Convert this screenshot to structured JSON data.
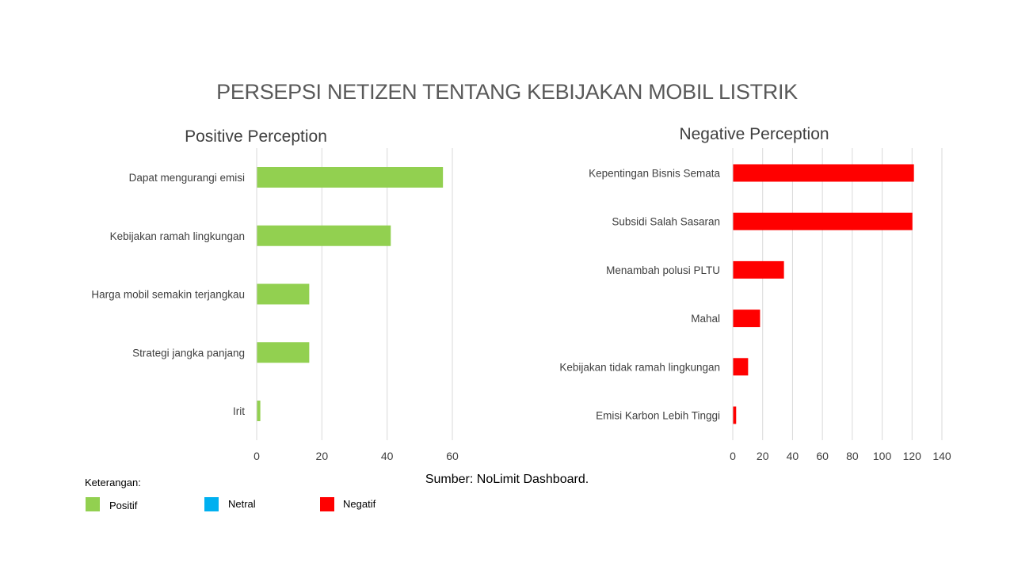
{
  "title": "PERSEPSI NETIZEN TENTANG KEBIJAKAN MOBIL LISTRIK",
  "source": "Sumber: NoLimit Dashboard.",
  "legend": {
    "title": "Keterangan:",
    "items": [
      {
        "label": "Positif",
        "color": "#92d050"
      },
      {
        "label": "Netral",
        "color": "#00b0f0"
      },
      {
        "label": "Negatif",
        "color": "#ff0000"
      }
    ]
  },
  "chart_data": [
    {
      "type": "bar",
      "orientation": "horizontal",
      "title": "Positive Perception",
      "categories": [
        "Dapat mengurangi emisi",
        "Kebijakan ramah lingkungan",
        "Harga mobil semakin terjangkau",
        "Strategi jangka panjang",
        "Irit"
      ],
      "values": [
        57,
        41,
        16,
        16,
        1
      ],
      "xlim": [
        0,
        60
      ],
      "xticks": [
        0,
        20,
        40,
        60
      ],
      "grid": true,
      "color": "#92d050"
    },
    {
      "type": "bar",
      "orientation": "horizontal",
      "title": "Negative Perception",
      "categories": [
        "Kepentingan Bisnis Semata",
        "Subsidi Salah Sasaran",
        "Menambah polusi PLTU",
        "Mahal",
        "Kebijakan tidak ramah lingkungan",
        "Emisi Karbon Lebih Tinggi"
      ],
      "values": [
        121,
        120,
        34,
        18,
        10,
        2
      ],
      "xlim": [
        0,
        140
      ],
      "xticks": [
        0,
        20,
        40,
        60,
        80,
        100,
        120,
        140
      ],
      "grid": true,
      "color": "#ff0000"
    }
  ]
}
